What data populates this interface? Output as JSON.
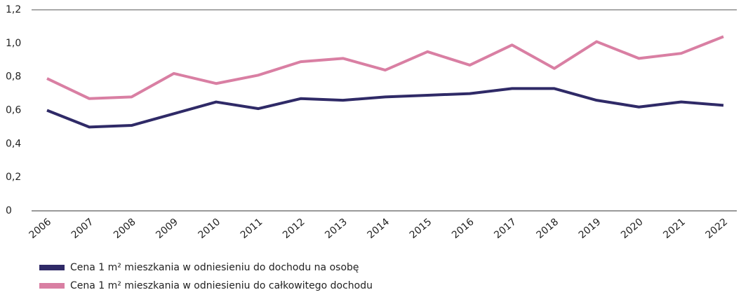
{
  "chart_data": {
    "type": "line",
    "categories": [
      "2006",
      "2007",
      "2008",
      "2009",
      "2010",
      "2011",
      "2012",
      "2013",
      "2014",
      "2015",
      "2016",
      "2017",
      "2018",
      "2019",
      "2020",
      "2021",
      "2022"
    ],
    "series": [
      {
        "name": "Cena 1 m² mieszkania w odniesieniu do dochodu na osobę",
        "color": "#2f2a67",
        "values": [
          0.6,
          0.5,
          0.51,
          0.58,
          0.65,
          0.61,
          0.67,
          0.66,
          0.68,
          0.69,
          0.7,
          0.73,
          0.73,
          0.66,
          0.62,
          0.65,
          0.63
        ]
      },
      {
        "name": "Cena 1 m² mieszkania w odniesieniu do całkowitego dochodu",
        "color": "#d97fa3",
        "values": [
          0.79,
          0.67,
          0.68,
          0.82,
          0.76,
          0.81,
          0.89,
          0.91,
          0.84,
          0.95,
          0.87,
          0.99,
          0.85,
          1.01,
          0.91,
          0.94,
          1.04
        ]
      }
    ],
    "ylim": [
      0,
      1.2
    ],
    "yticks": [
      0,
      {
        "value": 0.2,
        "label": "0,2"
      },
      {
        "value": 0.4,
        "label": "0,4"
      },
      {
        "value": 0.6,
        "label": "0,6"
      },
      {
        "value": 0.8,
        "label": "0,8"
      },
      {
        "value": 1.0,
        "label": "1,0"
      },
      {
        "value": 1.2,
        "label": "1,2"
      }
    ],
    "grid": false
  }
}
